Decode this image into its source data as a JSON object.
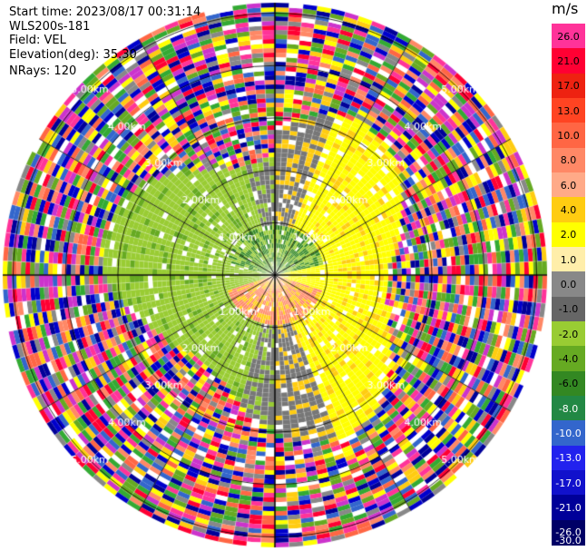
{
  "header": {
    "start_time": "Start time: 2023/08/17 00:31:14",
    "instrument": "WLS200s-181",
    "field": "Field: VEL",
    "elevation": "Elevation(deg): 35.30",
    "nrays": "NRays: 120"
  },
  "colorbar": {
    "unit": "m/s",
    "labels": [
      "26.0",
      "21.0",
      "17.0",
      "13.0",
      "10.0",
      "8.0",
      "6.0",
      "4.0",
      "2.0",
      "1.0",
      "0.0",
      "-1.0",
      "-2.0",
      "-4.0",
      "-6.0",
      "-8.0",
      "-10.0",
      "-13.0",
      "-17.0",
      "-21.0",
      "-26.0",
      "-30.0"
    ],
    "colors": [
      "#ff3399",
      "#ff0033",
      "#ee2211",
      "#ff4422",
      "#ff6644",
      "#ff8866",
      "#ffaa88",
      "#ffcc11",
      "#ffff00",
      "#ffeeaa",
      "#888888",
      "#666666",
      "#99cc33",
      "#66aa22",
      "#338822",
      "#228844",
      "#3366cc",
      "#2222ee",
      "#1111cc",
      "#000099",
      "#000066"
    ]
  },
  "chart_data": {
    "type": "ppi",
    "field": "VEL",
    "nrays": 120,
    "elevation_deg": 35.3,
    "range_rings_km": [
      1.0,
      2.0,
      3.0,
      4.0,
      5.0
    ],
    "range_labels": [
      "1.00km",
      "2.00km",
      "3.00km",
      "4.00km",
      "5.00km"
    ],
    "vmin": -30.0,
    "vmax": 30.0,
    "grid": true
  }
}
